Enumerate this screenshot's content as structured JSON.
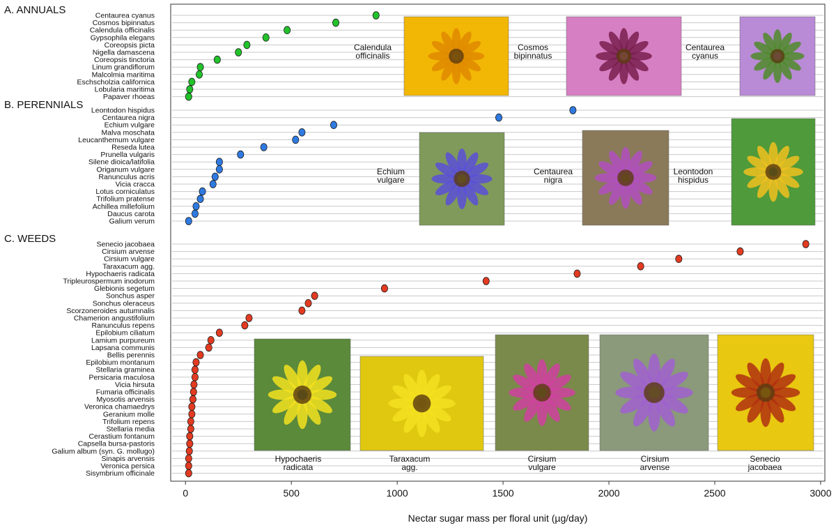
{
  "chart_data": {
    "type": "scatter",
    "xlabel": "Nectar sugar mass per floral unit (µg/day)",
    "xlim": [
      -70,
      3020
    ],
    "xticks": [
      0,
      500,
      1000,
      1500,
      2000,
      2500,
      3000
    ],
    "grid": true,
    "groups": [
      {
        "label": "A. ANNUALS",
        "color": "#22c22b",
        "species": [
          "Centaurea cyanus",
          "Cosmos bipinnatus",
          "Calendula officinalis",
          "Gypsophila elegans",
          "Coreopsis picta",
          "Nigella damascena",
          "Coreopsis tinctoria",
          "Linum grandiflorum",
          "Malcolmia maritima",
          "Eschscholzia californica",
          "Lobularia maritima",
          "Papaver rhoeas"
        ],
        "values": [
          900,
          710,
          480,
          380,
          290,
          250,
          150,
          70,
          65,
          30,
          20,
          15
        ],
        "photos": [
          {
            "caption": [
              "Calendula",
              "officinalis"
            ],
            "fill": "#f2b705",
            "accent": "#e08a00"
          },
          {
            "caption": [
              "Cosmos",
              "bipinnatus"
            ],
            "fill": "#d77fc3",
            "accent": "#7a1f4f"
          },
          {
            "caption": [
              "Centaurea",
              "cyanus"
            ],
            "fill": "#b98ad6",
            "accent": "#4f8a2a"
          }
        ]
      },
      {
        "label": "B. PERENNIALS",
        "color": "#2f7ae0",
        "species": [
          "Leontodon hispidus",
          "Centaurea nigra",
          "Echium vulgare",
          "Malva moschata",
          "Leucanthemum vulgare",
          "Reseda lutea",
          "Prunella vulgaris",
          "Silene dioica/latifolia",
          "Origanum vulgare",
          "Ranunculus acris",
          "Vicia cracca",
          "Lotus corniculatus",
          "Trifolium pratense",
          "Achillea millefolium",
          "Daucus carota",
          "Galium verum"
        ],
        "values": [
          1830,
          1480,
          700,
          550,
          520,
          370,
          260,
          160,
          160,
          140,
          130,
          80,
          70,
          50,
          45,
          15
        ],
        "photos": [
          {
            "caption": [
              "Echium",
              "vulgare"
            ],
            "fill": "#7f9a5a",
            "accent": "#5a4fd8"
          },
          {
            "caption": [
              "Centaurea",
              "nigra"
            ],
            "fill": "#8a7a5a",
            "accent": "#b04fc0"
          },
          {
            "caption": [
              "Leontodon",
              "hispidus"
            ],
            "fill": "#4f9a3a",
            "accent": "#f0c020"
          }
        ]
      },
      {
        "label": "C. WEEDS",
        "color": "#e23b22",
        "species": [
          "Senecio jacobaea",
          "Cirsium arvense",
          "Cirsium vulgare",
          "Taraxacum agg.",
          "Hypochaeris radicata",
          "Tripleurospermum inodorum",
          "Glebionis segetum",
          "Sonchus asper",
          "Sonchus oleraceus",
          "Scorzoneroides autumnalis",
          "Chamerion angustifolium",
          "Ranunculus repens",
          "Epilobium ciliatum",
          "Lamium purpureum",
          "Lapsana communis",
          "Bellis perennis",
          "Epilobium montanum",
          "Stellaria graminea",
          "Persicaria maculosa",
          "Vicia hirsuta",
          "Fumaria officinalis",
          "Myosotis arvensis",
          "Veronica chamaedrys",
          "Geranium molle",
          "Trifolium repens",
          "Stellaria media",
          "Cerastium fontanum",
          "Capsella bursa-pastoris",
          "Galium album (syn. G. mollugo)",
          "Sinapis arvensis",
          "Veronica persica",
          "Sisymbrium officinale"
        ],
        "values": [
          2930,
          2620,
          2330,
          2150,
          1850,
          1420,
          940,
          610,
          580,
          550,
          300,
          280,
          160,
          120,
          110,
          70,
          50,
          45,
          45,
          40,
          38,
          35,
          30,
          30,
          25,
          25,
          20,
          20,
          18,
          15,
          15,
          15
        ],
        "photos": [
          {
            "caption": [
              "Hypochaeris",
              "radicata"
            ],
            "fill": "#5a8a3a",
            "accent": "#f3e020"
          },
          {
            "caption": [
              "Taraxacum",
              "agg."
            ],
            "fill": "#e0c810",
            "accent": "#f3e020"
          },
          {
            "caption": [
              "Cirsium",
              "vulgare"
            ],
            "fill": "#7a8a4a",
            "accent": "#d040a0"
          },
          {
            "caption": [
              "Cirsium",
              "arvense"
            ],
            "fill": "#8a9a7a",
            "accent": "#a060d0"
          },
          {
            "caption": [
              "Senecio",
              "jacobaea"
            ],
            "fill": "#e8c810",
            "accent": "#b03010"
          }
        ]
      }
    ]
  }
}
